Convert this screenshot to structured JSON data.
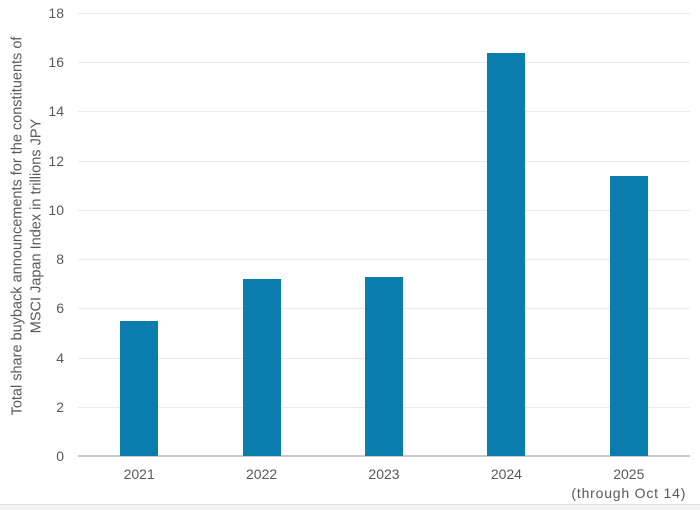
{
  "chart_data": {
    "type": "bar",
    "title": "",
    "categories": [
      "2021",
      "2022",
      "2023",
      "2024",
      "2025"
    ],
    "category_sublabels": [
      "",
      "",
      "",
      "",
      "(through Oct 14)"
    ],
    "values": [
      5.5,
      7.2,
      7.3,
      16.4,
      11.4
    ],
    "series_name": "Total share buyback announcements",
    "xlabel": "",
    "ylabel": "Total share buyback announcements for the constituents of MSCI Japan Index in trillions JPY",
    "ylabel_lines": [
      "Total share buyback announcements for the constituents of",
      "MSCI Japan Index in trillions JPY"
    ],
    "ylim": [
      0,
      18
    ],
    "yticks": [
      0,
      2,
      4,
      6,
      8,
      10,
      12,
      14,
      16,
      18
    ],
    "grid": true,
    "legend_position": "none"
  },
  "colors": {
    "bar": "#0a7dae",
    "gridline": "#e9e9e9",
    "axisline": "#c9c9c9",
    "tick_text": "#595959",
    "ylabel_text": "#595959",
    "bottom_strip": "#f2f2f2",
    "bottom_strip_edge": "#e4e4e4",
    "background": "#ffffff"
  }
}
